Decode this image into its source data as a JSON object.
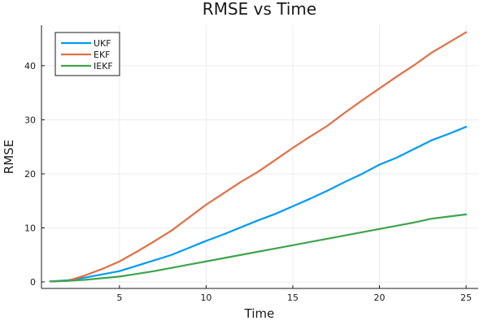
{
  "chart_data": {
    "type": "line",
    "title": "RMSE vs Time",
    "xlabel": "Time",
    "ylabel": "RMSE",
    "xlim": [
      0.5,
      25.7
    ],
    "ylim": [
      -1.2,
      47.5
    ],
    "xticks": [
      5,
      10,
      15,
      20,
      25
    ],
    "yticks": [
      0,
      10,
      20,
      30,
      40
    ],
    "grid": true,
    "legend_position": "top-left",
    "x": [
      1,
      2,
      3,
      4,
      5,
      6,
      7,
      8,
      9,
      10,
      11,
      12,
      13,
      14,
      15,
      16,
      17,
      18,
      19,
      20,
      21,
      22,
      23,
      24,
      25
    ],
    "series": [
      {
        "name": "UKF",
        "color": "#009af9",
        "values": [
          0.1,
          0.3,
          0.8,
          1.4,
          2.0,
          3.0,
          4.0,
          5.0,
          6.3,
          7.6,
          8.8,
          10.1,
          11.4,
          12.6,
          14.0,
          15.4,
          16.9,
          18.5,
          20.0,
          21.7,
          23.0,
          24.6,
          26.2,
          27.4,
          28.7
        ]
      },
      {
        "name": "EKF",
        "color": "#e26f46",
        "values": [
          0.1,
          0.2,
          1.2,
          2.4,
          3.8,
          5.6,
          7.5,
          9.5,
          11.9,
          14.3,
          16.4,
          18.5,
          20.4,
          22.6,
          24.8,
          26.9,
          28.9,
          31.3,
          33.6,
          35.8,
          38.0,
          40.1,
          42.4,
          44.3,
          46.2
        ]
      },
      {
        "name": "IEKF",
        "color": "#3da44d",
        "values": [
          0.1,
          0.2,
          0.4,
          0.7,
          1.0,
          1.5,
          2.0,
          2.6,
          3.2,
          3.8,
          4.4,
          5.0,
          5.6,
          6.2,
          6.8,
          7.4,
          8.0,
          8.6,
          9.2,
          9.8,
          10.4,
          11.0,
          11.7,
          12.1,
          12.5
        ]
      }
    ]
  }
}
